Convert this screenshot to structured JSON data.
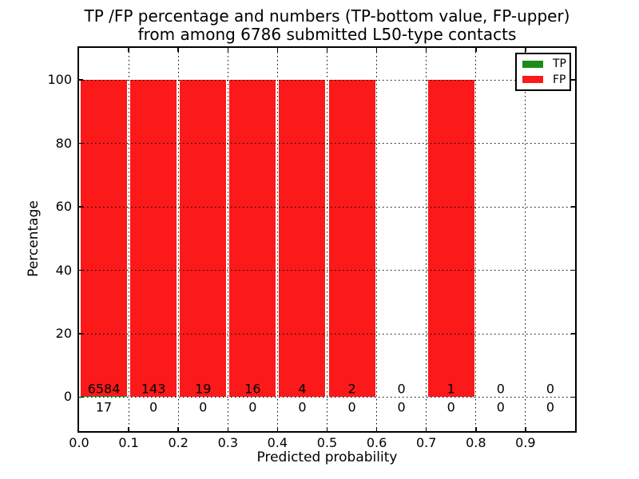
{
  "chart_data": {
    "type": "bar",
    "title": "TP /FP percentage and numbers (TP-bottom value, FP-upper)",
    "subtitle": "from among 6786 submitted L50-type contacts",
    "xlabel": "Predicted probability",
    "ylabel": "Percentage",
    "xlim": [
      0.0,
      1.0
    ],
    "ylim": [
      -10.7,
      110.1
    ],
    "x_ticks": [
      0.0,
      0.1,
      0.2,
      0.3,
      0.4,
      0.5,
      0.6,
      0.7,
      0.8,
      0.9
    ],
    "x_tick_labels": [
      "0.0",
      "0.1",
      "0.2",
      "0.3",
      "0.4",
      "0.5",
      "0.6",
      "0.7",
      "0.8",
      "0.9"
    ],
    "y_ticks": [
      0,
      20,
      40,
      60,
      80,
      100
    ],
    "y_tick_labels": [
      "0",
      "20",
      "40",
      "60",
      "80",
      "100"
    ],
    "grid_style": "dotted",
    "bin_edges": [
      0.0,
      0.1,
      0.2,
      0.3,
      0.4,
      0.5,
      0.6,
      0.7,
      0.8,
      0.9,
      1.0
    ],
    "series": [
      {
        "name": "TP",
        "color": "#198c19",
        "counts": [
          17,
          0,
          0,
          0,
          0,
          0,
          0,
          0,
          0,
          0
        ],
        "percent": [
          0.26,
          0,
          0,
          0,
          0,
          0,
          0,
          0,
          0,
          0
        ]
      },
      {
        "name": "FP",
        "color": "#fb1919",
        "counts": [
          6584,
          143,
          19,
          16,
          4,
          2,
          0,
          1,
          0,
          0
        ],
        "percent": [
          99.74,
          100,
          100,
          100,
          100,
          100,
          0,
          100,
          0,
          0
        ]
      }
    ],
    "legend": {
      "position": "upper right",
      "entries": [
        {
          "label": "TP",
          "color": "#198c19"
        },
        {
          "label": "FP",
          "color": "#fb1919"
        }
      ]
    }
  }
}
